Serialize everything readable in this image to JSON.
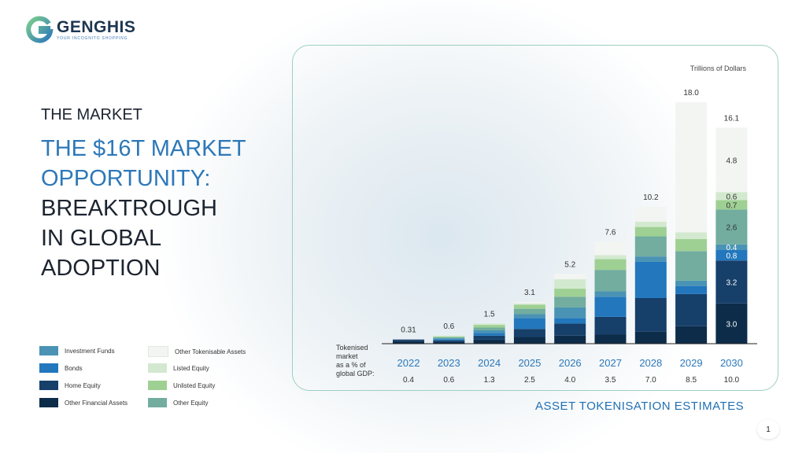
{
  "brand": {
    "name": "GENGHIS",
    "tagline": "YOUR INCOGNITO SHOPPING"
  },
  "section_label": "THE MARKET",
  "headline": {
    "blue_lines": [
      "THE $16T MARKET",
      "OPPORTUNITY:"
    ],
    "dark_lines": [
      "BREAKTROUGH",
      "IN GLOBAL",
      "ADOPTION"
    ]
  },
  "page_number": "1",
  "chart_footer": "ASSET TOKENISATION ESTIMATES",
  "legend": [
    {
      "name": "Investment Funds",
      "color": "#4a93b4"
    },
    {
      "name": "Bonds",
      "color": "#2277bd"
    },
    {
      "name": "Home Equity",
      "color": "#163f6a"
    },
    {
      "name": "Other Financial Assets",
      "color": "#0c2c4a"
    },
    {
      "name": "Other Tokenisable Assets",
      "color": "#f3f5f2"
    },
    {
      "name": "Listed Equity",
      "color": "#d3e9cf"
    },
    {
      "name": "Unlisted Equity",
      "color": "#9fd093"
    },
    {
      "name": "Other Equity",
      "color": "#72ad9f"
    }
  ],
  "chart_data": {
    "type": "bar",
    "unit_label": "Trillions of Dollars",
    "categories": [
      "2022",
      "2023",
      "2024",
      "2025",
      "2026",
      "2027",
      "2028",
      "2029",
      "2030"
    ],
    "totals": [
      "0.31",
      "0.6",
      "1.5",
      "3.1",
      "5.2",
      "7.6",
      "10.2",
      "18.0",
      "16.1"
    ],
    "gdp_row_label": [
      "Tokenised",
      "market",
      "as a % of",
      "global GDP:"
    ],
    "gdp_percent": [
      "0.4",
      "0.6",
      "1.3",
      "2.5",
      "4.0",
      "3.5",
      "7.0",
      "8.5",
      "10.0"
    ],
    "stack_order": [
      "Other Financial Assets",
      "Home Equity",
      "Bonds",
      "Investment Funds",
      "Other Equity",
      "Unlisted Equity",
      "Listed Equity",
      "Other Tokenisable Assets"
    ],
    "series": [
      {
        "name": "Other Financial Assets",
        "values": [
          0.19,
          0.14,
          0.3,
          0.5,
          0.6,
          0.7,
          0.9,
          1.3,
          3.0
        ]
      },
      {
        "name": "Home Equity",
        "values": [
          0.12,
          0.1,
          0.3,
          0.6,
          0.9,
          1.3,
          2.5,
          2.4,
          3.2
        ]
      },
      {
        "name": "Bonds",
        "values": [
          0,
          0.1,
          0.2,
          0.8,
          0.4,
          1.5,
          2.7,
          0.6,
          0.8
        ]
      },
      {
        "name": "Investment Funds",
        "values": [
          0,
          0.06,
          0.2,
          0.3,
          0.8,
          0.4,
          0.4,
          0.4,
          0.4
        ]
      },
      {
        "name": "Other Equity",
        "values": [
          0,
          0.08,
          0.2,
          0.4,
          0.8,
          1.6,
          1.5,
          2.2,
          2.6
        ]
      },
      {
        "name": "Unlisted Equity",
        "values": [
          0,
          0.06,
          0.2,
          0.3,
          0.6,
          0.8,
          0.7,
          0.9,
          0.7
        ]
      },
      {
        "name": "Listed Equity",
        "values": [
          0,
          0.06,
          0.1,
          0.1,
          0.7,
          0.3,
          0.4,
          0.5,
          0.6
        ]
      },
      {
        "name": "Other Tokenisable Assets",
        "values": [
          0,
          0,
          0,
          0.1,
          0.4,
          1.0,
          1.1,
          9.7,
          4.8
        ]
      }
    ],
    "segment_labels_2030": [
      "3.0",
      "3.2",
      "0.8",
      "0.4",
      "2.6",
      "0.7",
      "0.6",
      "4.8"
    ],
    "ylim": [
      0,
      17
    ]
  }
}
